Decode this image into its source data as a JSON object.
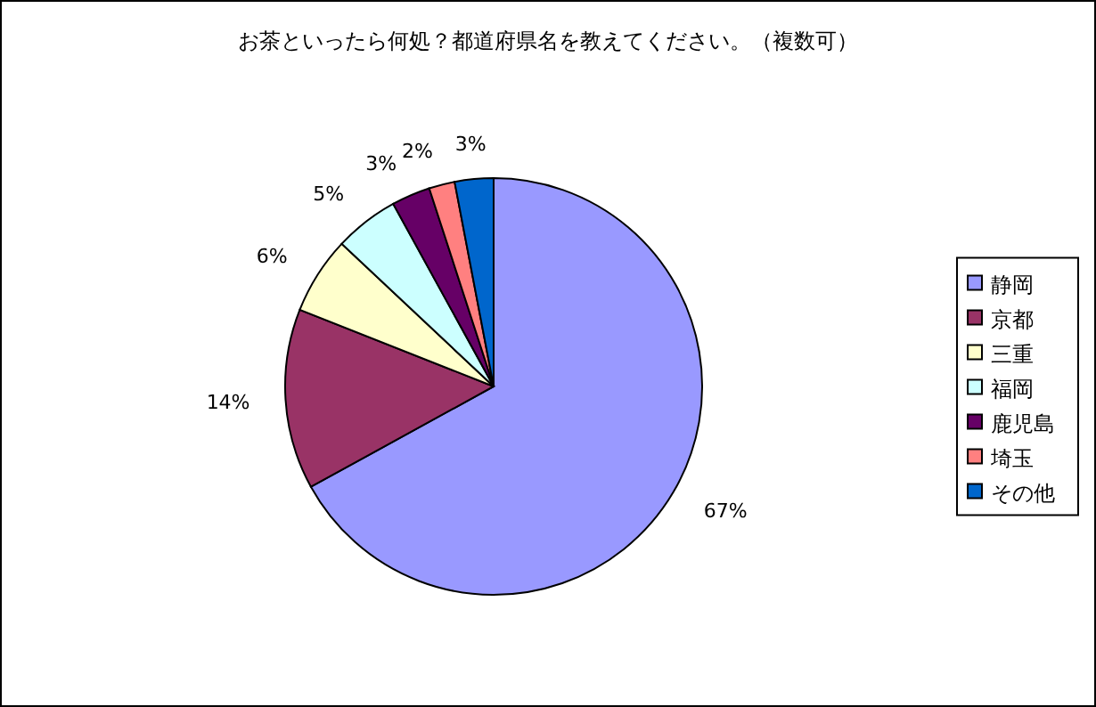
{
  "chart_data": {
    "type": "pie",
    "title": "お茶といったら何処？都道府県名を教えてください。（複数可）",
    "categories": [
      "静岡",
      "京都",
      "三重",
      "福岡",
      "鹿児島",
      "埼玉",
      "その他"
    ],
    "values": [
      67,
      14,
      6,
      5,
      3,
      2,
      3
    ],
    "value_labels": [
      "67%",
      "14%",
      "6%",
      "5%",
      "3%",
      "2%",
      "3%"
    ],
    "colors": [
      "#9999ff",
      "#993366",
      "#ffffcc",
      "#ccffff",
      "#660066",
      "#ff8080",
      "#0066cc"
    ],
    "legend": "right"
  }
}
